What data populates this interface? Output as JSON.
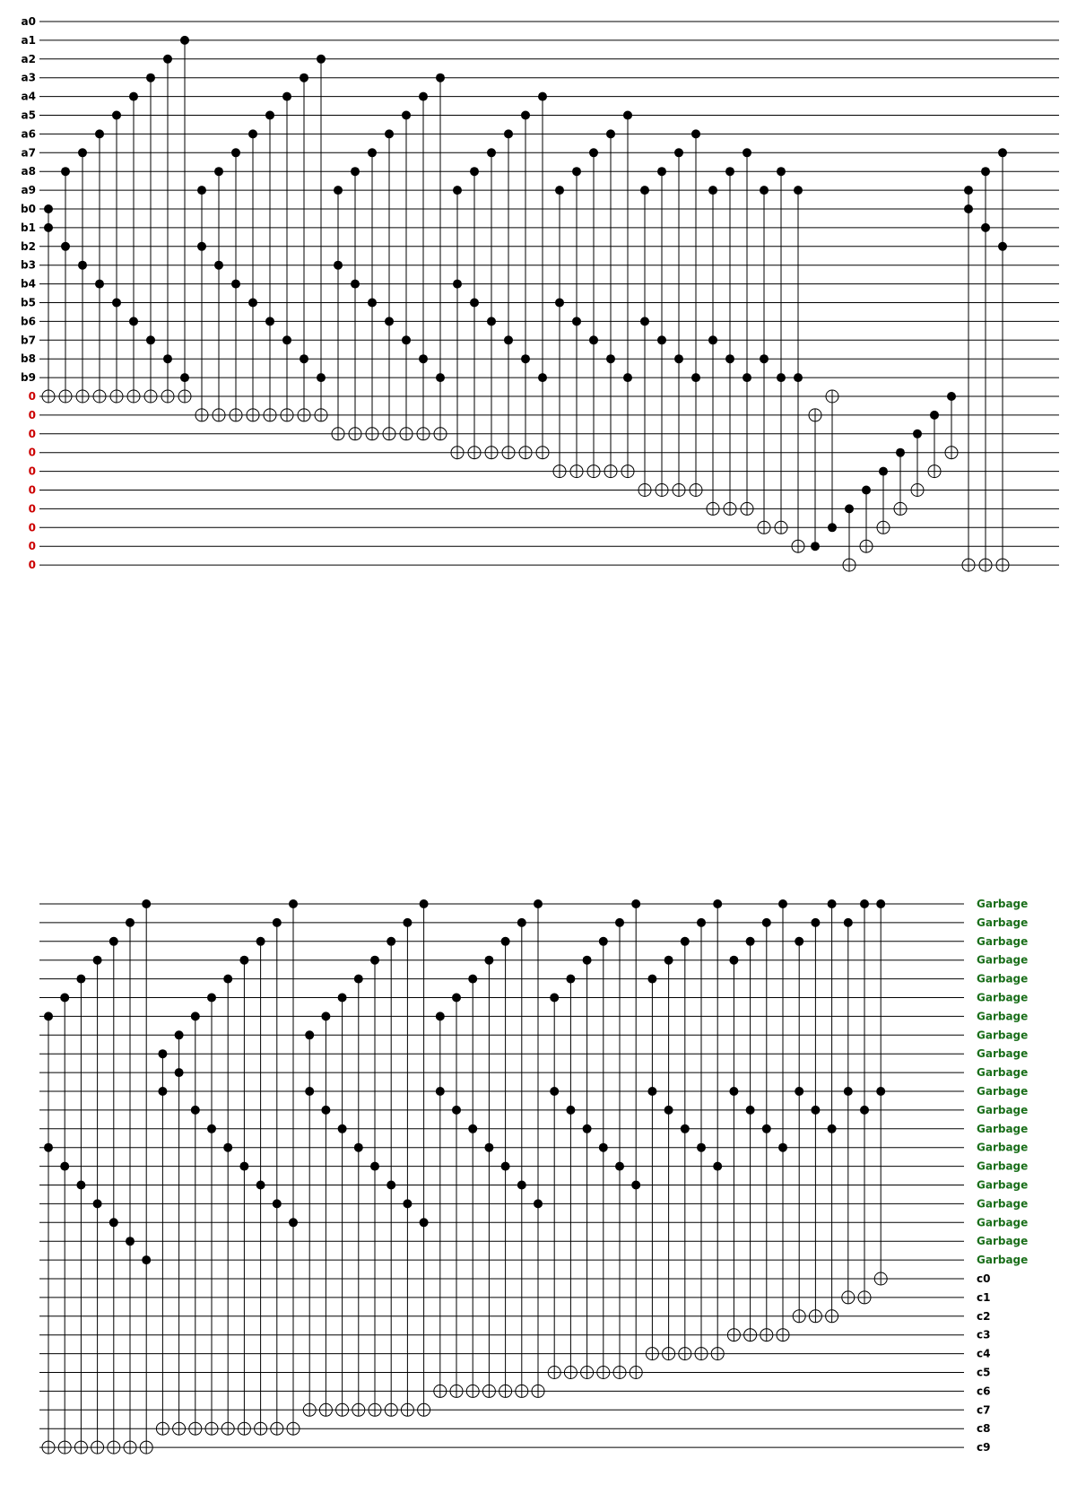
{
  "top_panel": {
    "wire_labels": [
      "a0",
      "a1",
      "a2",
      "a3",
      "a4",
      "a5",
      "a6",
      "a7",
      "a8",
      "a9",
      "b0",
      "b1",
      "b2",
      "b3",
      "b4",
      "b5",
      "b6",
      "b7",
      "b8",
      "b9",
      "0",
      "0",
      "0",
      "0",
      "0",
      "0",
      "0",
      "0",
      "0",
      "0"
    ],
    "ancilla_label_color": "#cc0000",
    "label_color": "#000000",
    "gates": [
      {
        "c": [
          10,
          11
        ],
        "t": 20
      },
      {
        "c": [
          8,
          12
        ],
        "t": 20
      },
      {
        "c": [
          7,
          13
        ],
        "t": 20
      },
      {
        "c": [
          6,
          14
        ],
        "t": 20
      },
      {
        "c": [
          5,
          15
        ],
        "t": 20
      },
      {
        "c": [
          4,
          16
        ],
        "t": 20
      },
      {
        "c": [
          3,
          17
        ],
        "t": 20
      },
      {
        "c": [
          2,
          18
        ],
        "t": 20
      },
      {
        "c": [
          1,
          19
        ],
        "t": 20
      },
      {
        "c": [
          9,
          12
        ],
        "t": 21
      },
      {
        "c": [
          8,
          13
        ],
        "t": 21
      },
      {
        "c": [
          7,
          14
        ],
        "t": 21
      },
      {
        "c": [
          6,
          15
        ],
        "t": 21
      },
      {
        "c": [
          5,
          16
        ],
        "t": 21
      },
      {
        "c": [
          4,
          17
        ],
        "t": 21
      },
      {
        "c": [
          3,
          18
        ],
        "t": 21
      },
      {
        "c": [
          2,
          19
        ],
        "t": 21
      },
      {
        "c": [
          9,
          13
        ],
        "t": 22
      },
      {
        "c": [
          8,
          14
        ],
        "t": 22
      },
      {
        "c": [
          7,
          15
        ],
        "t": 22
      },
      {
        "c": [
          6,
          16
        ],
        "t": 22
      },
      {
        "c": [
          5,
          17
        ],
        "t": 22
      },
      {
        "c": [
          4,
          18
        ],
        "t": 22
      },
      {
        "c": [
          3,
          19
        ],
        "t": 22
      },
      {
        "c": [
          9,
          14
        ],
        "t": 23
      },
      {
        "c": [
          8,
          15
        ],
        "t": 23
      },
      {
        "c": [
          7,
          16
        ],
        "t": 23
      },
      {
        "c": [
          6,
          17
        ],
        "t": 23
      },
      {
        "c": [
          5,
          18
        ],
        "t": 23
      },
      {
        "c": [
          4,
          19
        ],
        "t": 23
      },
      {
        "c": [
          9,
          15
        ],
        "t": 24
      },
      {
        "c": [
          8,
          16
        ],
        "t": 24
      },
      {
        "c": [
          7,
          17
        ],
        "t": 24
      },
      {
        "c": [
          6,
          18
        ],
        "t": 24
      },
      {
        "c": [
          5,
          19
        ],
        "t": 24
      },
      {
        "c": [
          9,
          16
        ],
        "t": 25
      },
      {
        "c": [
          8,
          17
        ],
        "t": 25
      },
      {
        "c": [
          7,
          18
        ],
        "t": 25
      },
      {
        "c": [
          6,
          19
        ],
        "t": 25
      },
      {
        "c": [
          9,
          17
        ],
        "t": 26
      },
      {
        "c": [
          8,
          18
        ],
        "t": 26
      },
      {
        "c": [
          7,
          19
        ],
        "t": 26
      },
      {
        "c": [
          9,
          18
        ],
        "t": 27
      },
      {
        "c": [
          8,
          19
        ],
        "t": 27
      },
      {
        "c": [
          9,
          19
        ],
        "t": 28
      },
      {
        "c": [
          28
        ],
        "t": 21
      },
      {
        "c": [
          27
        ],
        "t": 20
      },
      {
        "c": [
          26
        ],
        "t": 29
      },
      {
        "c": [
          25
        ],
        "t": 28
      },
      {
        "c": [
          24
        ],
        "t": 27
      },
      {
        "c": [
          23
        ],
        "t": 26
      },
      {
        "c": [
          22
        ],
        "t": 25
      },
      {
        "c": [
          21
        ],
        "t": 24
      },
      {
        "c": [
          20
        ],
        "t": 23
      },
      {
        "c": [
          9,
          10
        ],
        "t": 29
      },
      {
        "c": [
          8,
          11
        ],
        "t": 29
      },
      {
        "c": [
          7,
          12
        ],
        "t": 29
      }
    ]
  },
  "bottom_panel": {
    "left_labels": [
      "",
      "",
      "",
      "",
      "",
      "",
      "",
      "",
      "",
      "",
      "",
      "",
      "",
      "",
      "",
      "",
      "",
      "",
      "",
      "",
      "",
      "",
      "",
      "",
      "",
      "",
      "",
      "",
      "",
      ""
    ],
    "right_labels": [
      "Garbage",
      "Garbage",
      "Garbage",
      "Garbage",
      "Garbage",
      "Garbage",
      "Garbage",
      "Garbage",
      "Garbage",
      "Garbage",
      "Garbage",
      "Garbage",
      "Garbage",
      "Garbage",
      "Garbage",
      "Garbage",
      "Garbage",
      "Garbage",
      "Garbage",
      "Garbage",
      "c0",
      "c1",
      "c2",
      "c3",
      "c4",
      "c5",
      "c6",
      "c7",
      "c8",
      "c9"
    ],
    "garbage_label_color": "#1a6e1a",
    "output_label_color": "#000000",
    "gates": [
      {
        "c": [
          6,
          13
        ],
        "t": 29
      },
      {
        "c": [
          5,
          14
        ],
        "t": 29
      },
      {
        "c": [
          4,
          15
        ],
        "t": 29
      },
      {
        "c": [
          3,
          16
        ],
        "t": 29
      },
      {
        "c": [
          2,
          17
        ],
        "t": 29
      },
      {
        "c": [
          1,
          18
        ],
        "t": 29
      },
      {
        "c": [
          0,
          19
        ],
        "t": 29
      },
      {
        "c": [
          10,
          8
        ],
        "t": 28
      },
      {
        "c": [
          9,
          7
        ],
        "t": 28
      },
      {
        "c": [
          11,
          6
        ],
        "t": 28
      },
      {
        "c": [
          12,
          5
        ],
        "t": 28
      },
      {
        "c": [
          13,
          4
        ],
        "t": 28
      },
      {
        "c": [
          14,
          3
        ],
        "t": 28
      },
      {
        "c": [
          15,
          2
        ],
        "t": 28
      },
      {
        "c": [
          16,
          1
        ],
        "t": 28
      },
      {
        "c": [
          17,
          0
        ],
        "t": 28
      },
      {
        "c": [
          10,
          7
        ],
        "t": 27
      },
      {
        "c": [
          11,
          6
        ],
        "t": 27
      },
      {
        "c": [
          12,
          5
        ],
        "t": 27
      },
      {
        "c": [
          13,
          4
        ],
        "t": 27
      },
      {
        "c": [
          14,
          3
        ],
        "t": 27
      },
      {
        "c": [
          15,
          2
        ],
        "t": 27
      },
      {
        "c": [
          16,
          1
        ],
        "t": 27
      },
      {
        "c": [
          17,
          0
        ],
        "t": 27
      },
      {
        "c": [
          10,
          6
        ],
        "t": 26
      },
      {
        "c": [
          11,
          5
        ],
        "t": 26
      },
      {
        "c": [
          12,
          4
        ],
        "t": 26
      },
      {
        "c": [
          13,
          3
        ],
        "t": 26
      },
      {
        "c": [
          14,
          2
        ],
        "t": 26
      },
      {
        "c": [
          15,
          1
        ],
        "t": 26
      },
      {
        "c": [
          16,
          0
        ],
        "t": 26
      },
      {
        "c": [
          10,
          5
        ],
        "t": 25
      },
      {
        "c": [
          11,
          4
        ],
        "t": 25
      },
      {
        "c": [
          12,
          3
        ],
        "t": 25
      },
      {
        "c": [
          13,
          2
        ],
        "t": 25
      },
      {
        "c": [
          14,
          1
        ],
        "t": 25
      },
      {
        "c": [
          15,
          0
        ],
        "t": 25
      },
      {
        "c": [
          10,
          4
        ],
        "t": 24
      },
      {
        "c": [
          11,
          3
        ],
        "t": 24
      },
      {
        "c": [
          12,
          2
        ],
        "t": 24
      },
      {
        "c": [
          13,
          1
        ],
        "t": 24
      },
      {
        "c": [
          14,
          0
        ],
        "t": 24
      },
      {
        "c": [
          10,
          3
        ],
        "t": 23
      },
      {
        "c": [
          11,
          2
        ],
        "t": 23
      },
      {
        "c": [
          12,
          1
        ],
        "t": 23
      },
      {
        "c": [
          13,
          0
        ],
        "t": 23
      },
      {
        "c": [
          10,
          2
        ],
        "t": 22
      },
      {
        "c": [
          11,
          1
        ],
        "t": 22
      },
      {
        "c": [
          12,
          0
        ],
        "t": 22
      },
      {
        "c": [
          10,
          1
        ],
        "t": 21
      },
      {
        "c": [
          11,
          0
        ],
        "t": 21
      },
      {
        "c": [
          10,
          0
        ],
        "t": 20
      }
    ]
  },
  "colors": {
    "wire": "#000000",
    "control": "#000000",
    "target_fill": "#ffffff"
  }
}
